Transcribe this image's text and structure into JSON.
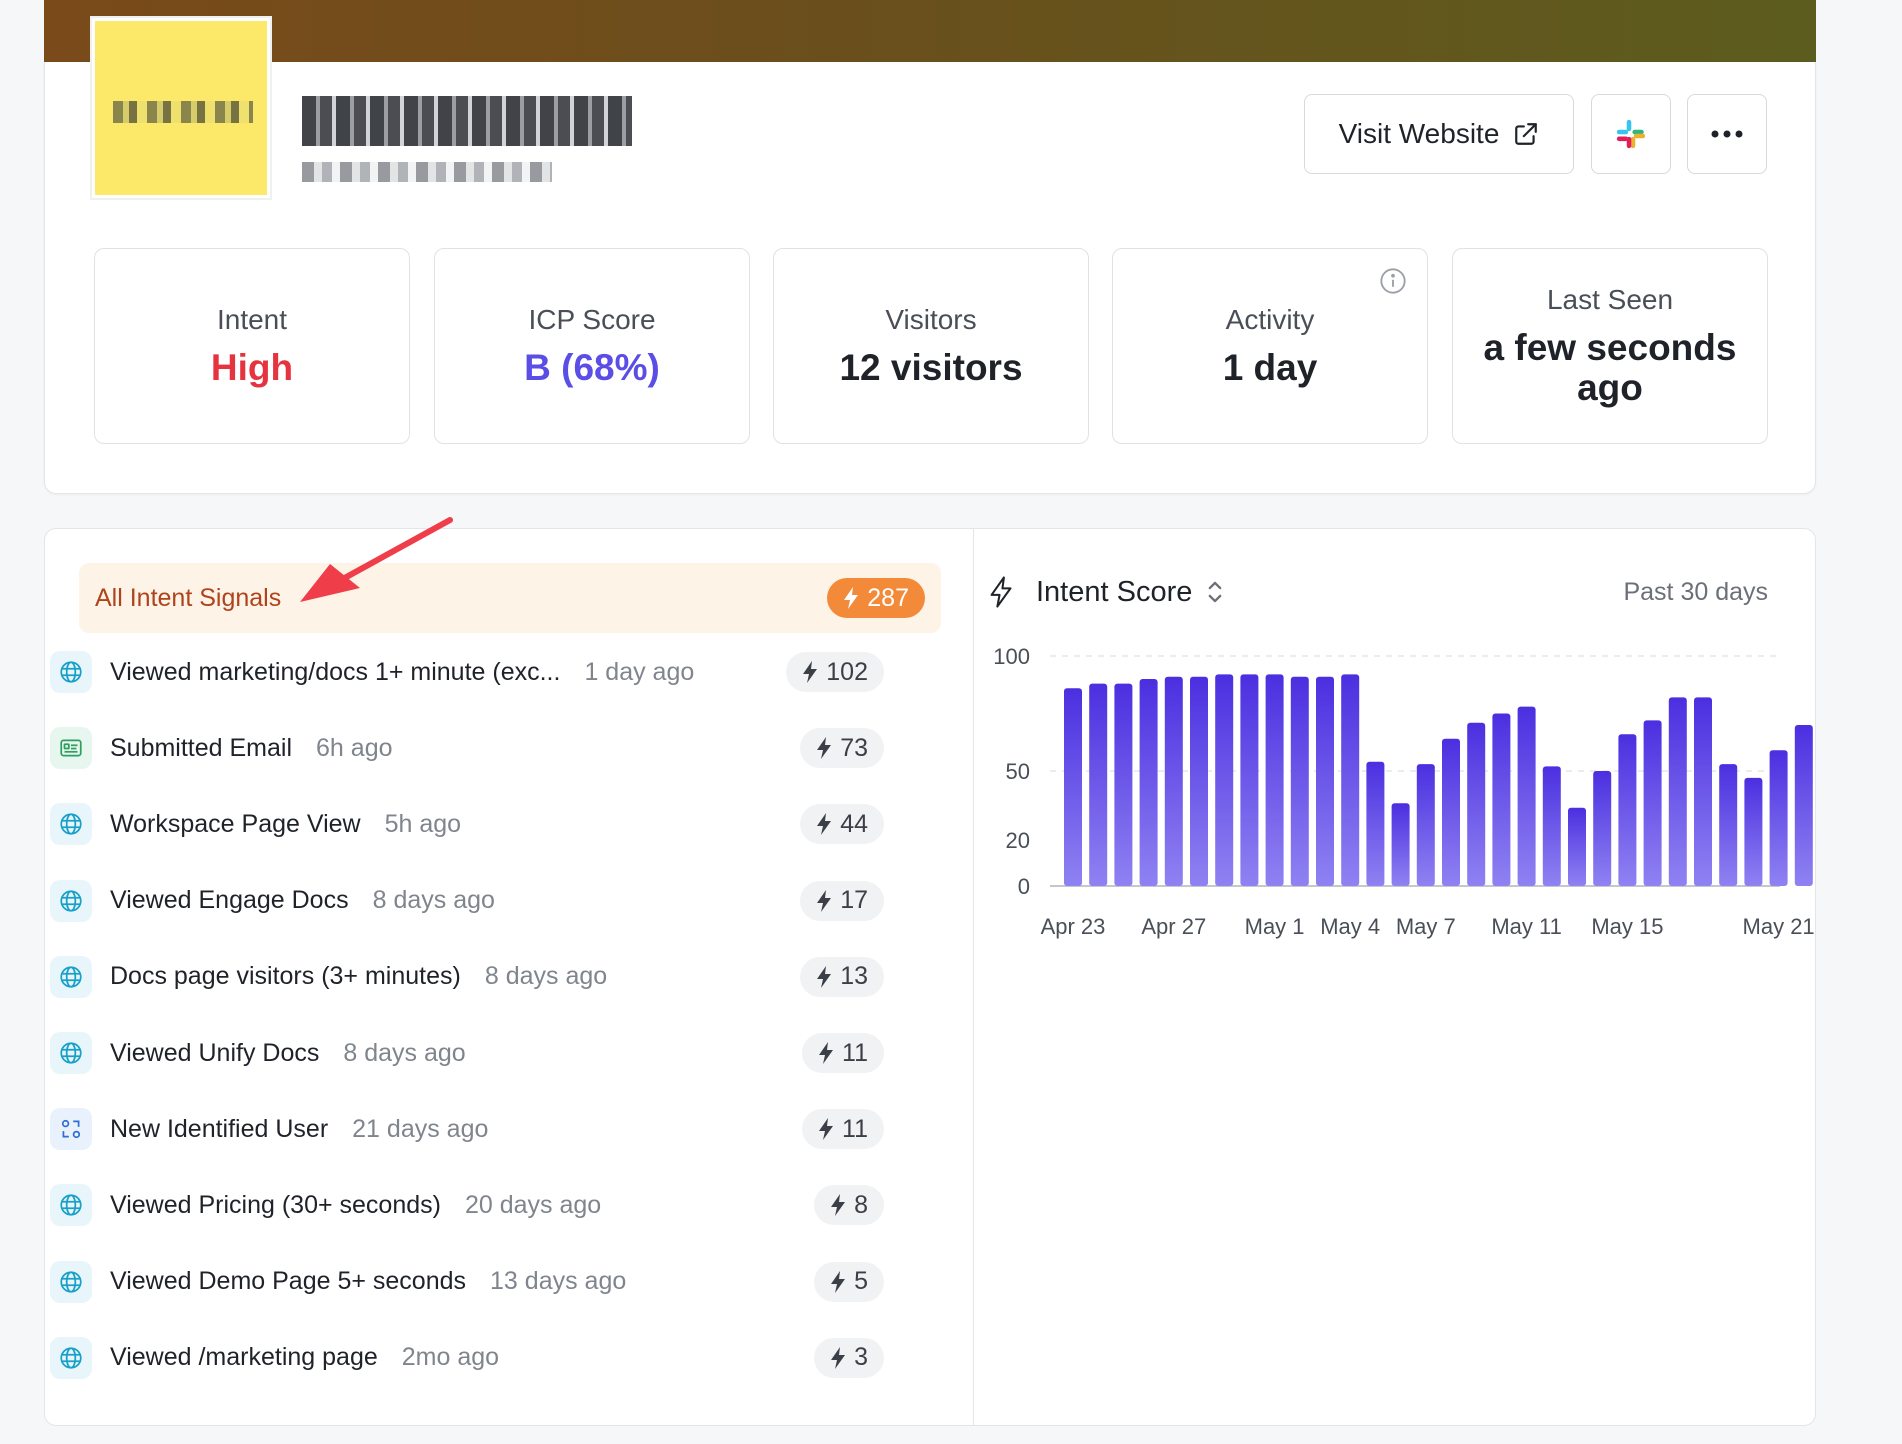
{
  "header": {
    "visit_label": "Visit Website",
    "slack_icon": "slack-icon",
    "more_icon": "more-icon"
  },
  "stats": [
    {
      "label": "Intent",
      "value": "High"
    },
    {
      "label": "ICP Score",
      "value": "B (68%)"
    },
    {
      "label": "Visitors",
      "value": "12 visitors"
    },
    {
      "label": "Activity",
      "value": "1 day"
    },
    {
      "label": "Last Seen",
      "value": "a few seconds ago"
    }
  ],
  "colors": {
    "high": "#e5333f",
    "icp": "#5b4ee6",
    "accent_orange": "#f38a3a",
    "bar": "#5b3de8"
  },
  "signals": {
    "all_label": "All Intent Signals",
    "all_count": "287",
    "items": [
      {
        "name": "Viewed marketing/docs 1+ minute (exc...",
        "time": "1 day ago",
        "score": "102",
        "icon": "globe-icon"
      },
      {
        "name": "Submitted Email",
        "time": "6h ago",
        "score": "73",
        "icon": "form-icon"
      },
      {
        "name": "Workspace Page View",
        "time": "5h ago",
        "score": "44",
        "icon": "globe-icon"
      },
      {
        "name": "Viewed Engage Docs",
        "time": "8 days ago",
        "score": "17",
        "icon": "globe-icon"
      },
      {
        "name": "Docs page visitors (3+ minutes)",
        "time": "8 days ago",
        "score": "13",
        "icon": "globe-icon"
      },
      {
        "name": "Viewed Unify Docs",
        "time": "8 days ago",
        "score": "11",
        "icon": "globe-icon"
      },
      {
        "name": "New Identified User",
        "time": "21 days ago",
        "score": "11",
        "icon": "user-switch-icon"
      },
      {
        "name": "Viewed Pricing (30+ seconds)",
        "time": "20 days ago",
        "score": "8",
        "icon": "globe-icon"
      },
      {
        "name": "Viewed Demo Page 5+ seconds",
        "time": "13 days ago",
        "score": "5",
        "icon": "globe-icon"
      },
      {
        "name": "Viewed /marketing page",
        "time": "2mo ago",
        "score": "3",
        "icon": "globe-icon"
      }
    ]
  },
  "chart": {
    "title": "Intent Score",
    "range": "Past 30 days"
  },
  "chart_data": {
    "type": "bar",
    "y_ticks": [
      0,
      20,
      50,
      100
    ],
    "ylim": [
      0,
      100
    ],
    "x_tick_labels": [
      "Apr 23",
      "Apr 27",
      "May 1",
      "May 4",
      "May 7",
      "May 11",
      "May 15",
      "May 21"
    ],
    "x_tick_index": [
      0,
      4,
      8,
      11,
      14,
      18,
      22,
      28
    ],
    "values": [
      86,
      88,
      88,
      90,
      91,
      91,
      92,
      92,
      92,
      91,
      91,
      92,
      54,
      36,
      53,
      64,
      71,
      75,
      78,
      52,
      34,
      50,
      66,
      72,
      82,
      82,
      53,
      47,
      59,
      70
    ],
    "grid": true
  }
}
